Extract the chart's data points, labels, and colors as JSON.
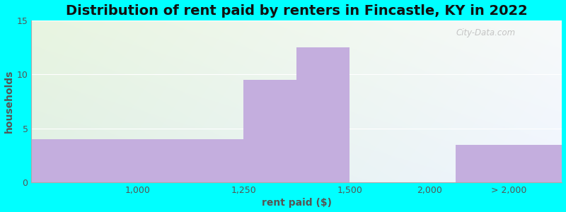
{
  "title": "Distribution of rent paid by renters in Fincastle, KY in 2022",
  "xlabel": "rent paid ($)",
  "ylabel": "households",
  "bar_color": "#c4aede",
  "xtick_labels": [
    "1,000",
    "1,250",
    "1,500",
    "2,000",
    "> 2,000"
  ],
  "ylim": [
    0,
    15
  ],
  "yticks": [
    0,
    5,
    10,
    15
  ],
  "bg_color": "#00ffff",
  "gradient_colors": [
    "#e8f5e0",
    "#f0f8f8"
  ],
  "grid_color": "#ffffff",
  "title_fontsize": 14,
  "axis_label_fontsize": 10,
  "tick_fontsize": 9,
  "watermark_text": "City-Data.com"
}
